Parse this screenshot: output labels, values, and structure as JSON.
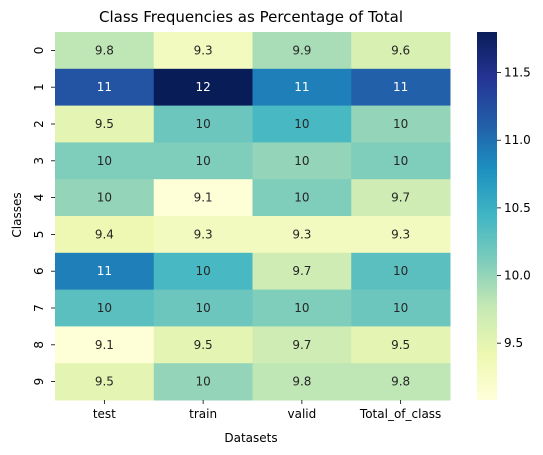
{
  "chart_data": {
    "type": "heatmap",
    "title": "Class Frequencies as Percentage of Total",
    "xlabel": "Datasets",
    "ylabel": "Classes",
    "columns": [
      "test",
      "train",
      "valid",
      "Total_of_class"
    ],
    "rows": [
      "0",
      "1",
      "2",
      "3",
      "4",
      "5",
      "6",
      "7",
      "8",
      "9"
    ],
    "values": [
      [
        9.8,
        9.3,
        9.9,
        9.6
      ],
      [
        11.2,
        11.8,
        10.9,
        11.1
      ],
      [
        9.5,
        10.2,
        10.4,
        10.0
      ],
      [
        10.1,
        10.1,
        10.0,
        10.1
      ],
      [
        10.0,
        9.1,
        10.1,
        9.7
      ],
      [
        9.4,
        9.3,
        9.3,
        9.3
      ],
      [
        10.9,
        10.4,
        9.7,
        10.3
      ],
      [
        10.3,
        10.2,
        10.1,
        10.2
      ],
      [
        9.1,
        9.5,
        9.7,
        9.5
      ],
      [
        9.5,
        10.0,
        9.8,
        9.8
      ]
    ],
    "cell_labels": [
      [
        "9.8",
        "9.3",
        "9.9",
        "9.6"
      ],
      [
        "11",
        "12",
        "11",
        "11"
      ],
      [
        "9.5",
        "10",
        "10",
        "10"
      ],
      [
        "10",
        "10",
        "10",
        "10"
      ],
      [
        "10",
        "9.1",
        "10",
        "9.7"
      ],
      [
        "9.4",
        "9.3",
        "9.3",
        "9.3"
      ],
      [
        "11",
        "10",
        "9.7",
        "10"
      ],
      [
        "10",
        "10",
        "10",
        "10"
      ],
      [
        "9.1",
        "9.5",
        "9.7",
        "9.5"
      ],
      [
        "9.5",
        "10",
        "9.8",
        "9.8"
      ]
    ],
    "colormap": "YlGnBu",
    "colorbar": {
      "range": [
        9.08,
        11.8
      ],
      "ticks": [
        9.5,
        10.0,
        10.5,
        11.0,
        11.5
      ],
      "tick_labels": [
        "9.5",
        "10.0",
        "10.5",
        "11.0",
        "11.5"
      ]
    },
    "grid": false,
    "legend": "colorbar-right"
  }
}
